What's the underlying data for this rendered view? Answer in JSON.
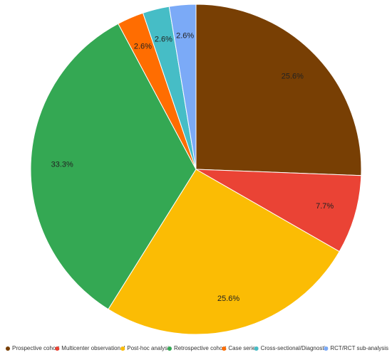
{
  "chart_data": {
    "type": "pie",
    "categories": [
      "Prospective cohort",
      "Multicenter observational",
      "Post-hoc analysis",
      "Retrospective cohort",
      "Case series",
      "Cross-sectional/Diagnostic",
      "RCT/RCT sub-analysis"
    ],
    "values": [
      25.6,
      7.7,
      25.6,
      33.3,
      2.6,
      2.6,
      2.6
    ],
    "value_labels": [
      "25.6%",
      "7.7%",
      "25.6%",
      "33.3%",
      "2.6%",
      "2.6%",
      "2.6%"
    ],
    "colors": [
      "#783f04",
      "#ea4335",
      "#fbbc04",
      "#34a853",
      "#ff6d01",
      "#46bdc6",
      "#7baaf7"
    ],
    "legend": "bottom"
  }
}
